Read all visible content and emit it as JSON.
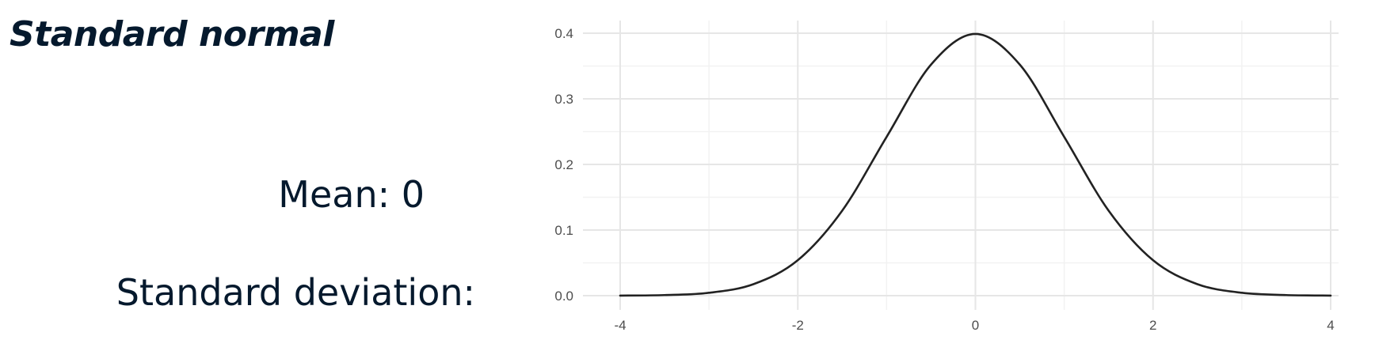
{
  "slide": {
    "title": "Standard normal",
    "mean_text": "Mean: 0",
    "sd_text": "Standard deviation:"
  },
  "chart_data": {
    "type": "line",
    "title": "",
    "xlabel": "",
    "ylabel": "",
    "xlim": [
      -4,
      4
    ],
    "ylim": [
      0,
      0.4
    ],
    "x_ticks": [
      -4,
      -2,
      0,
      2,
      4
    ],
    "x_tick_labels": [
      "-4",
      "-2",
      "0",
      "2",
      "4"
    ],
    "y_ticks": [
      0,
      0.1,
      0.2,
      0.3,
      0.4
    ],
    "y_tick_labels": [
      "0.0",
      "0.1",
      "0.2",
      "0.3",
      "0.4"
    ],
    "grid": true,
    "legend": false,
    "series": [
      {
        "color": "#222222",
        "x": [
          -4,
          -3.5,
          -3,
          -2.5,
          -2,
          -1.5,
          -1,
          -0.5,
          0,
          0.5,
          1,
          1.5,
          2,
          2.5,
          3,
          3.5,
          4
        ],
        "y": [
          0.0001,
          0.0009,
          0.0044,
          0.0175,
          0.054,
          0.1295,
          0.242,
          0.3521,
          0.3989,
          0.3521,
          0.242,
          0.1295,
          0.054,
          0.0175,
          0.0044,
          0.0009,
          0.0001
        ]
      }
    ]
  }
}
